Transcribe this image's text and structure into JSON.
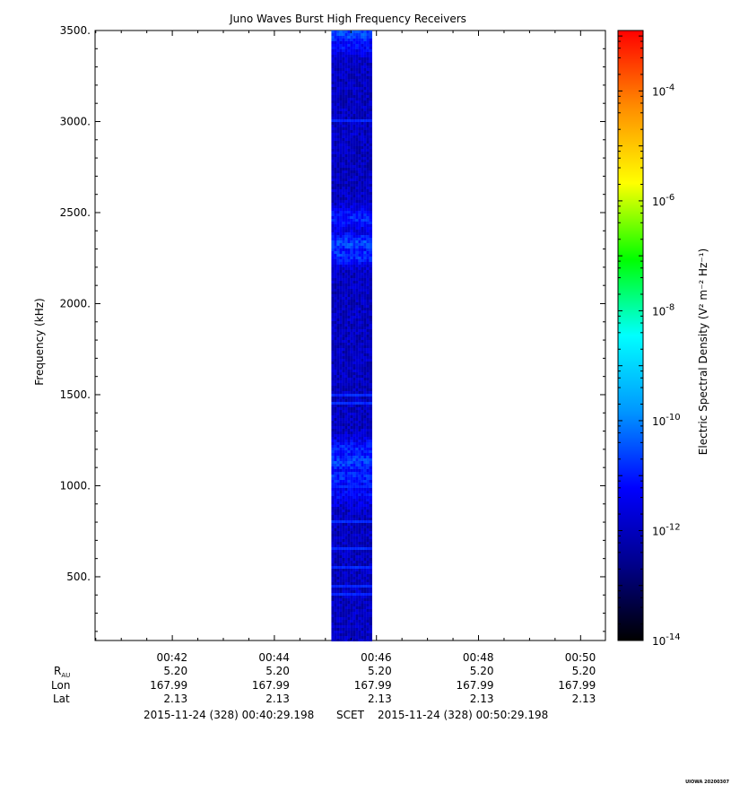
{
  "chart_data": {
    "type": "heatmap",
    "title": "Juno Waves Burst High Frequency Receivers",
    "ylabel": "Frequency (kHz)",
    "ylim": [
      150,
      3500
    ],
    "yscale": "linear",
    "yticks": [
      {
        "value": 500,
        "label": "500."
      },
      {
        "value": 1000,
        "label": "1000."
      },
      {
        "value": 1500,
        "label": "1500."
      },
      {
        "value": 2000,
        "label": "2000."
      },
      {
        "value": 2500,
        "label": "2500."
      },
      {
        "value": 3000,
        "label": "3000."
      },
      {
        "value": 3500,
        "label": "3500."
      }
    ],
    "xlim": [
      "00:40:29.198",
      "00:50:29.198"
    ],
    "xticks": [
      {
        "time": "00:42",
        "R_AU": "5.20",
        "Lon": "167.99",
        "Lat": "2.13"
      },
      {
        "time": "00:44",
        "R_AU": "5.20",
        "Lon": "167.99",
        "Lat": "2.13"
      },
      {
        "time": "00:46",
        "R_AU": "5.20",
        "Lon": "167.99",
        "Lat": "2.13"
      },
      {
        "time": "00:48",
        "R_AU": "5.20",
        "Lon": "167.99",
        "Lat": "2.13"
      },
      {
        "time": "00:50",
        "R_AU": "5.20",
        "Lon": "167.99",
        "Lat": "2.13"
      }
    ],
    "ephemeris_labels": {
      "r_main": "R",
      "r_sub": "AU",
      "lon": "Lon",
      "lat": "Lat"
    },
    "time_range": {
      "start": "2015-11-24 (328) 00:40:29.198",
      "separator": "SCET",
      "end": "2015-11-24 (328) 00:50:29.198"
    },
    "data_window": {
      "start": "00:45:07",
      "end": "00:45:55"
    },
    "colorbar": {
      "label": "Electric Spectral Density (V² m⁻² Hz⁻¹)",
      "scale": "log",
      "range_exp": [
        -14,
        -2.9
      ],
      "ticks": [
        {
          "base": "10",
          "exp": "-14"
        },
        {
          "base": "10",
          "exp": "-12"
        },
        {
          "base": "10",
          "exp": "-10"
        },
        {
          "base": "10",
          "exp": "-8"
        },
        {
          "base": "10",
          "exp": "-6"
        },
        {
          "base": "10",
          "exp": "-4"
        }
      ],
      "colors": [
        "#000000",
        "#00008b",
        "#0000ff",
        "#0096ff",
        "#00ffff",
        "#00ff00",
        "#ffff00",
        "#ff8c00",
        "#ff0000"
      ]
    },
    "intensity_profile": {
      "base_log_level": -12.0,
      "features": [
        {
          "freq_khz": 3480,
          "log_level": -10.6
        },
        {
          "freq_khz": 3420,
          "log_level": -11.2
        },
        {
          "freq_khz": 2470,
          "log_level": -11.0
        },
        {
          "freq_khz": 2330,
          "log_level": -10.6
        },
        {
          "freq_khz": 2270,
          "log_level": -10.8
        },
        {
          "freq_khz": 1200,
          "log_level": -11.0
        },
        {
          "freq_khz": 1130,
          "log_level": -10.7
        },
        {
          "freq_khz": 1050,
          "log_level": -10.9
        },
        {
          "freq_khz": 950,
          "log_level": -11.3
        }
      ],
      "lines_khz": [
        3000,
        1500,
        1450,
        1000,
        800,
        650,
        550,
        450,
        400
      ]
    },
    "credit": "UIOWA 20200307"
  }
}
